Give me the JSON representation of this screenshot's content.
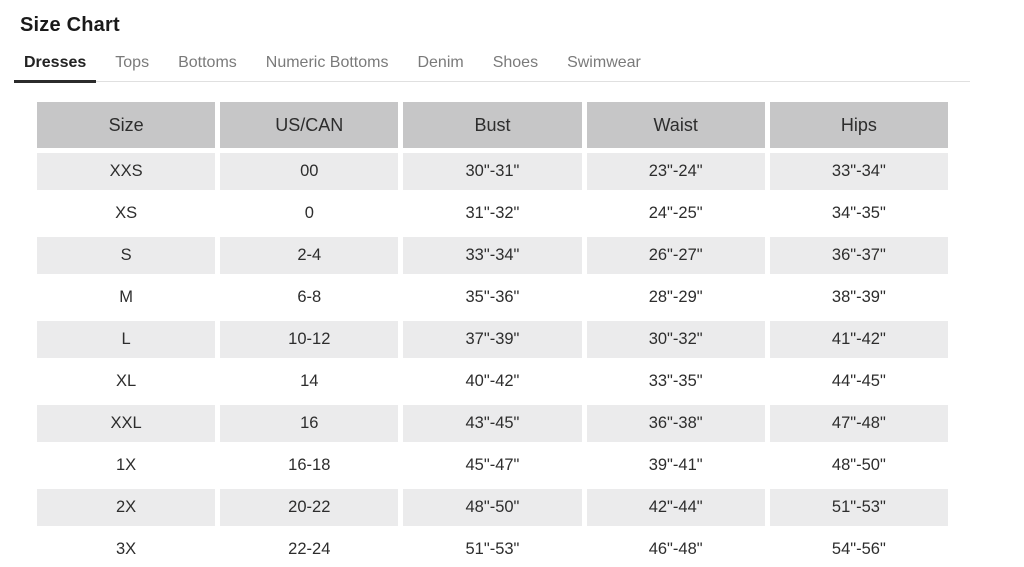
{
  "page": {
    "title": "Size Chart"
  },
  "tabs": [
    {
      "label": "Dresses",
      "active": true
    },
    {
      "label": "Tops",
      "active": false
    },
    {
      "label": "Bottoms",
      "active": false
    },
    {
      "label": "Numeric Bottoms",
      "active": false
    },
    {
      "label": "Denim",
      "active": false
    },
    {
      "label": "Shoes",
      "active": false
    },
    {
      "label": "Swimwear",
      "active": false
    }
  ],
  "table": {
    "headers": [
      "Size",
      "US/CAN",
      "Bust",
      "Waist",
      "Hips"
    ],
    "rows": [
      [
        "XXS",
        "00",
        "30\"-31\"",
        "23\"-24\"",
        "33\"-34\""
      ],
      [
        "XS",
        "0",
        "31\"-32\"",
        "24\"-25\"",
        "34\"-35\""
      ],
      [
        "S",
        "2-4",
        "33\"-34\"",
        "26\"-27\"",
        "36\"-37\""
      ],
      [
        "M",
        "6-8",
        "35\"-36\"",
        "28\"-29\"",
        "38\"-39\""
      ],
      [
        "L",
        "10-12",
        "37\"-39\"",
        "30\"-32\"",
        "41\"-42\""
      ],
      [
        "XL",
        "14",
        "40\"-42\"",
        "33\"-35\"",
        "44\"-45\""
      ],
      [
        "XXL",
        "16",
        "43\"-45\"",
        "36\"-38\"",
        "47\"-48\""
      ],
      [
        "1X",
        "16-18",
        "45\"-47\"",
        "39\"-41\"",
        "48\"-50\""
      ],
      [
        "2X",
        "20-22",
        "48\"-50\"",
        "42\"-44\"",
        "51\"-53\""
      ],
      [
        "3X",
        "22-24",
        "51\"-53\"",
        "46\"-48\"",
        "54\"-56\""
      ]
    ]
  },
  "colors": {
    "header_bg": "#c6c6c7",
    "shaded_row_bg": "#ebebec",
    "active_tab_underline": "#2b2b2b",
    "inactive_tab_text": "#7a7a7a",
    "tab_rule": "#e0e0e0",
    "text": "#2d2d2d"
  }
}
